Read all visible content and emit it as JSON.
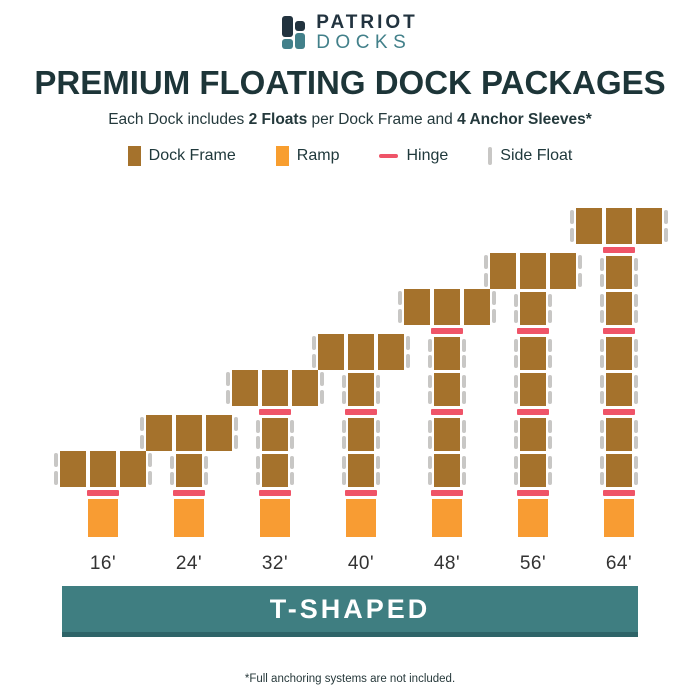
{
  "logo": {
    "line1": "PATRIOT",
    "line2": "DOCKS"
  },
  "title": "PREMIUM FLOATING DOCK PACKAGES",
  "subtitle": {
    "part1": "Each Dock includes ",
    "bold1": "2 Floats",
    "part2": " per Dock Frame and ",
    "bold2": "4 Anchor Sleeves*"
  },
  "legend": {
    "items": [
      {
        "name": "dock-frame",
        "label": "Dock Frame",
        "swatch": "square",
        "color": "#A5722C"
      },
      {
        "name": "ramp",
        "label": "Ramp",
        "swatch": "square",
        "color": "#F89E2F"
      },
      {
        "name": "hinge",
        "label": "Hinge",
        "swatch": "line",
        "color": "#EF5468"
      },
      {
        "name": "side-float",
        "label": "Side Float",
        "swatch": "bar",
        "color": "#C8C7C5"
      }
    ]
  },
  "diagram": {
    "type": "dock-package-diagram",
    "shape": "T-shaped",
    "docks": [
      {
        "label": "16'",
        "length_ft": 16,
        "segments": [
          "head",
          "hinge",
          "ramp"
        ]
      },
      {
        "label": "24'",
        "length_ft": 24,
        "segments": [
          "head",
          "square",
          "hinge",
          "ramp"
        ]
      },
      {
        "label": "32'",
        "length_ft": 32,
        "segments": [
          "head",
          "hinge",
          "square",
          "square",
          "hinge",
          "ramp"
        ]
      },
      {
        "label": "40'",
        "length_ft": 40,
        "segments": [
          "head",
          "square",
          "hinge",
          "square",
          "square",
          "hinge",
          "ramp"
        ]
      },
      {
        "label": "48'",
        "length_ft": 48,
        "segments": [
          "head",
          "hinge",
          "square",
          "square",
          "hinge",
          "square",
          "square",
          "hinge",
          "ramp"
        ]
      },
      {
        "label": "56'",
        "length_ft": 56,
        "segments": [
          "head",
          "square",
          "hinge",
          "square",
          "square",
          "hinge",
          "square",
          "square",
          "hinge",
          "ramp"
        ]
      },
      {
        "label": "64'",
        "length_ft": 64,
        "segments": [
          "head",
          "hinge",
          "square",
          "square",
          "hinge",
          "square",
          "square",
          "hinge",
          "square",
          "square",
          "hinge",
          "ramp"
        ]
      }
    ]
  },
  "banner": {
    "label": "T-SHAPED"
  },
  "footnote": "*Full anchoring systems are not included.",
  "colors": {
    "dock_frame": "#A5722C",
    "ramp": "#F89C33",
    "hinge": "#EF5468",
    "side_float": "#C8C7C5",
    "banner": "#3F7E81",
    "banner_edge": "#2E6468",
    "title_ink": "#1D3538",
    "logo_navy": "#22333F",
    "logo_teal": "#42808A",
    "label": "#333333"
  }
}
